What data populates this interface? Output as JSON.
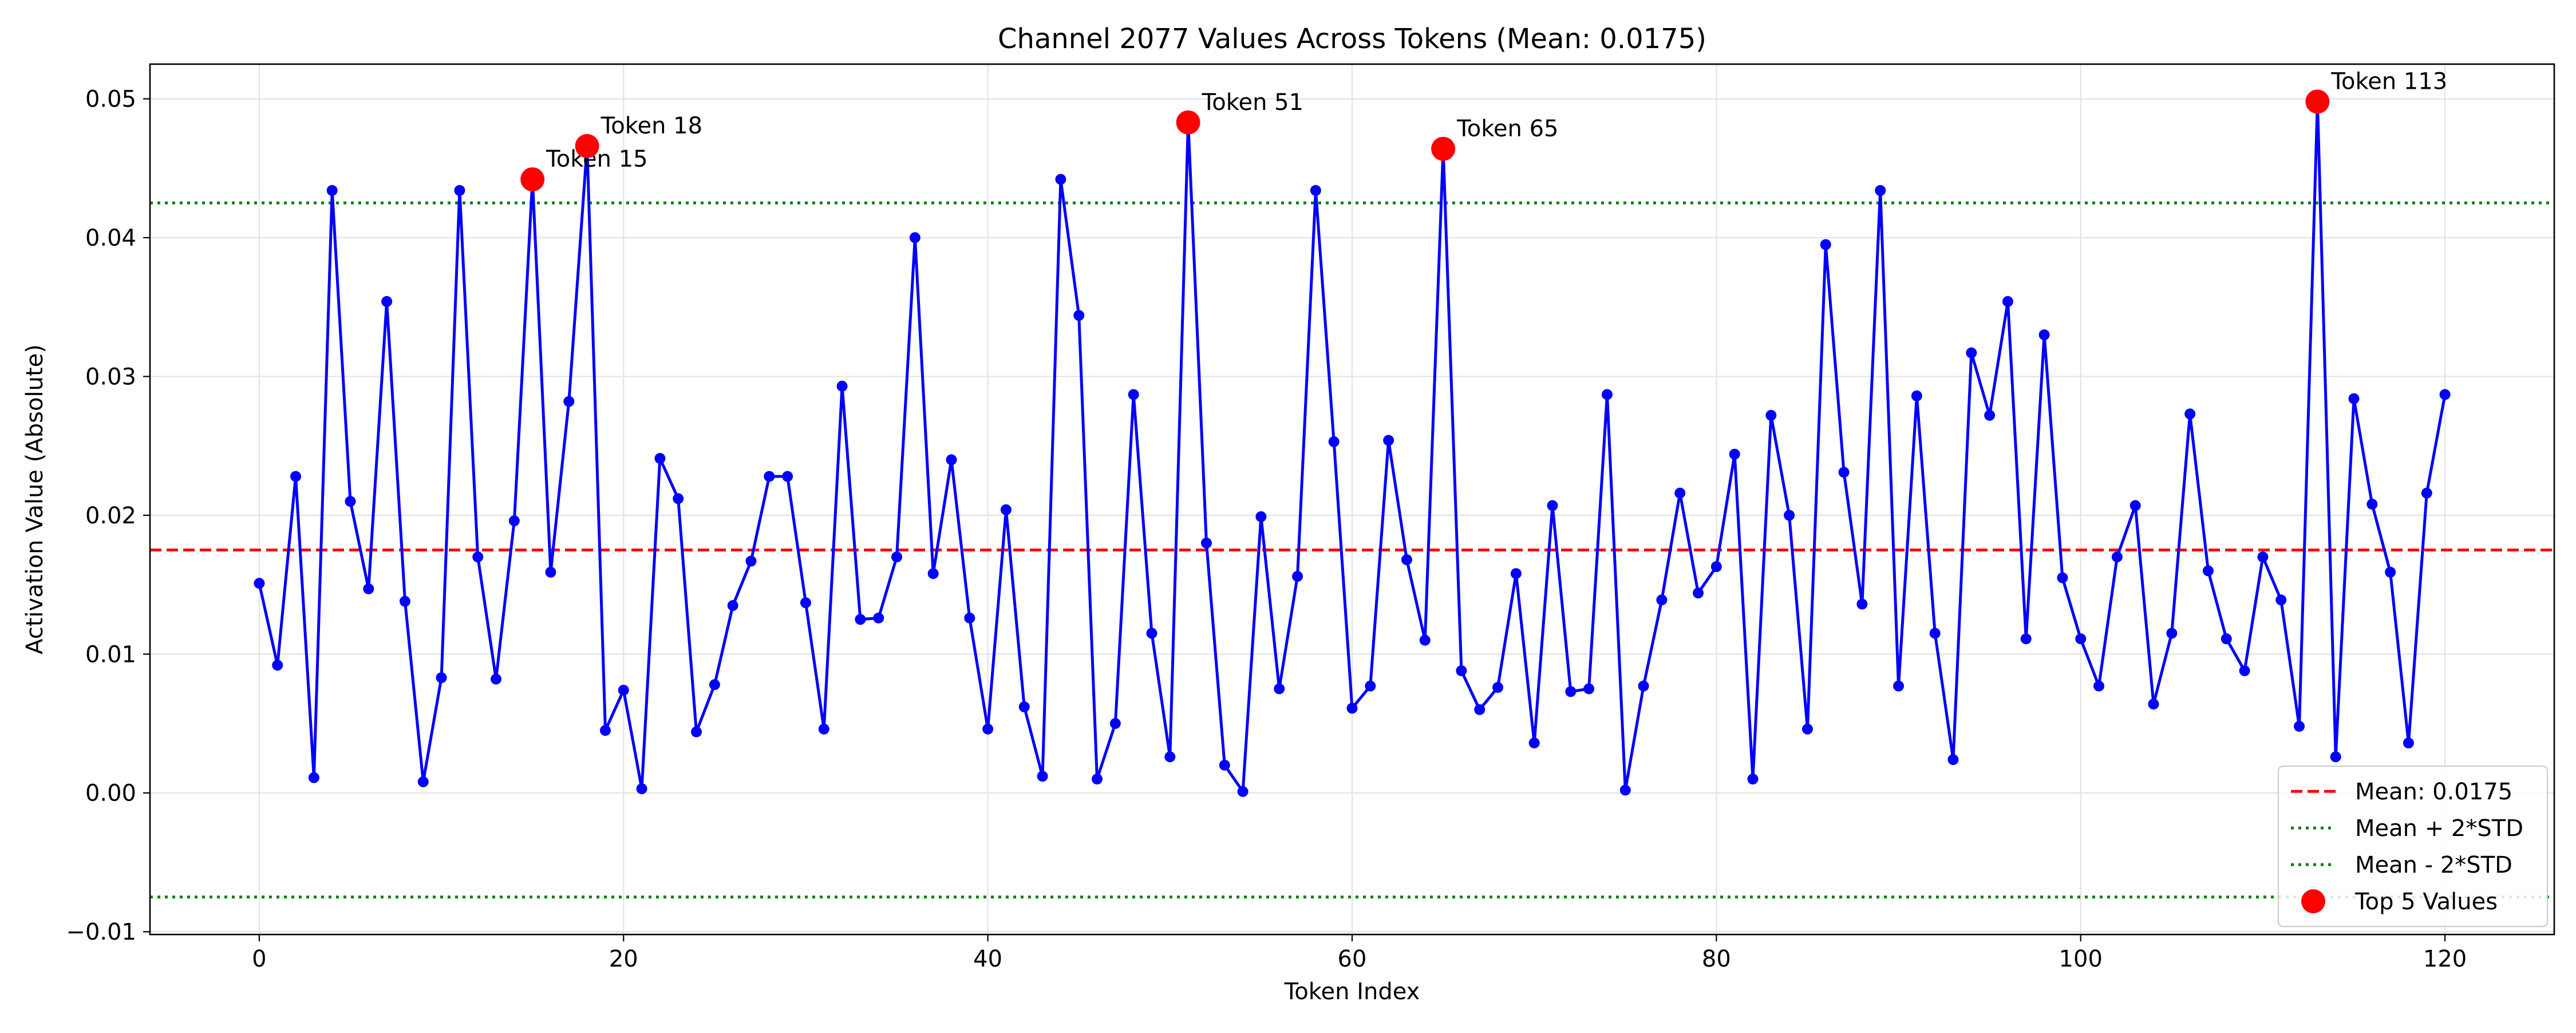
{
  "chart_data": {
    "type": "line",
    "title": "Channel 2077 Values Across Tokens (Mean: 0.0175)",
    "xlabel": "Token Index",
    "ylabel": "Activation Value (Absolute)",
    "xlim": [
      -6,
      126
    ],
    "ylim": [
      -0.0102,
      0.0525
    ],
    "xticks": [
      0,
      20,
      40,
      60,
      80,
      100,
      120
    ],
    "yticks": [
      -0.01,
      0.0,
      0.01,
      0.02,
      0.03,
      0.04,
      0.05
    ],
    "xtick_labels": [
      "0",
      "20",
      "40",
      "60",
      "80",
      "100",
      "120"
    ],
    "ytick_labels": [
      "−0.01",
      "0.00",
      "0.01",
      "0.02",
      "0.03",
      "0.04",
      "0.05"
    ],
    "grid": true,
    "legend_position": "bottom-right",
    "series": {
      "color": "#0000ff",
      "x_start": 0,
      "values": [
        0.0151,
        0.0092,
        0.0228,
        0.0011,
        0.0434,
        0.021,
        0.0147,
        0.0354,
        0.0138,
        0.0008,
        0.0083,
        0.0434,
        0.017,
        0.0082,
        0.0196,
        0.0442,
        0.0159,
        0.0282,
        0.0466,
        0.0045,
        0.0074,
        0.0003,
        0.0241,
        0.0212,
        0.0044,
        0.0078,
        0.0135,
        0.0167,
        0.0228,
        0.0228,
        0.0137,
        0.0046,
        0.0293,
        0.0125,
        0.0126,
        0.017,
        0.04,
        0.0158,
        0.024,
        0.0126,
        0.0046,
        0.0204,
        0.0062,
        0.0012,
        0.0442,
        0.0344,
        0.001,
        0.005,
        0.0287,
        0.0115,
        0.0026,
        0.0483,
        0.018,
        0.002,
        0.0001,
        0.0199,
        0.0075,
        0.0156,
        0.0434,
        0.0253,
        0.0061,
        0.0077,
        0.0254,
        0.0168,
        0.011,
        0.0464,
        0.0088,
        0.006,
        0.0076,
        0.0158,
        0.0036,
        0.0207,
        0.0073,
        0.0075,
        0.0287,
        0.0002,
        0.0077,
        0.0139,
        0.0216,
        0.0144,
        0.0163,
        0.0244,
        0.001,
        0.0272,
        0.02,
        0.0046,
        0.0395,
        0.0231,
        0.0136,
        0.0434,
        0.0077,
        0.0286,
        0.0115,
        0.0024,
        0.0317,
        0.0272,
        0.0354,
        0.0111,
        0.033,
        0.0155,
        0.0111,
        0.0077,
        0.017,
        0.0207,
        0.0064,
        0.0115,
        0.0273,
        0.016,
        0.0111,
        0.0088,
        0.017,
        0.0139,
        0.0048,
        0.0498,
        0.0026,
        0.0284,
        0.0208,
        0.0159,
        0.0036,
        0.0216,
        0.0287
      ]
    },
    "mean_line": {
      "value": 0.0175,
      "color": "#ff0000",
      "label": "Mean: 0.0175"
    },
    "upper_line": {
      "value": 0.0425,
      "color": "#008000",
      "label": "Mean + 2*STD"
    },
    "lower_line": {
      "value": -0.0075,
      "color": "#008000",
      "label": "Mean - 2*STD"
    },
    "top_points": {
      "color": "#ff0000",
      "label": "Top 5 Values",
      "points": [
        {
          "x": 15,
          "y": 0.0442,
          "label": "Token 15"
        },
        {
          "x": 18,
          "y": 0.0466,
          "label": "Token 18"
        },
        {
          "x": 51,
          "y": 0.0483,
          "label": "Token 51"
        },
        {
          "x": 65,
          "y": 0.0464,
          "label": "Token 65"
        },
        {
          "x": 113,
          "y": 0.0498,
          "label": "Token 113"
        }
      ]
    }
  }
}
